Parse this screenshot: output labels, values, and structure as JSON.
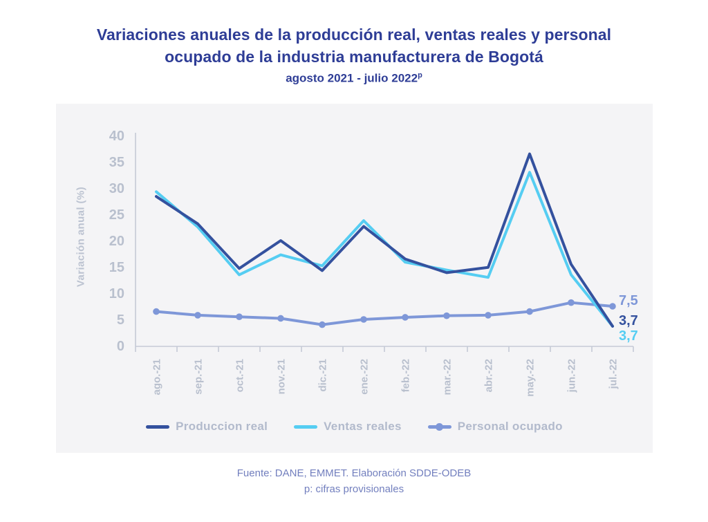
{
  "title": {
    "line1": "Variaciones anuales de la producción real, ventas reales y personal",
    "line2": "ocupado de la industria manufacturera de Bogotá",
    "subtitle": "agosto 2021 - julio 2022",
    "subtitle_superscript": "p"
  },
  "chart_data": {
    "type": "line",
    "title": "Variaciones anuales de la producción real, ventas reales y personal ocupado de la industria manufacturera de Bogotá",
    "subtitle": "agosto 2021 - julio 2022 (p)",
    "xlabel": "",
    "ylabel": "Variación anual (%)",
    "ylim": [
      0,
      40
    ],
    "yticks": [
      0,
      5,
      10,
      15,
      20,
      25,
      30,
      35,
      40
    ],
    "grid": false,
    "legend_position": "bottom",
    "categories": [
      "ago.-21",
      "sep.-21",
      "oct.-21",
      "nov.-21",
      "dic.-21",
      "ene.-22",
      "feb.-22",
      "mar.-22",
      "abr.-22",
      "may.-22",
      "jun.-22",
      "jul.-22"
    ],
    "series": [
      {
        "name": "Produccion real",
        "color": "#34519e",
        "marker": "none",
        "values": [
          28.4,
          23.2,
          14.7,
          20.0,
          14.3,
          22.7,
          16.5,
          13.9,
          14.9,
          36.5,
          15.5,
          3.7
        ]
      },
      {
        "name": "Ventas reales",
        "color": "#55cdf2",
        "marker": "none",
        "values": [
          29.3,
          22.6,
          13.5,
          17.3,
          15.2,
          23.8,
          15.9,
          14.4,
          13.0,
          33.0,
          13.5,
          3.7
        ]
      },
      {
        "name": "Personal ocupado",
        "color": "#7e97d8",
        "marker": "circle",
        "values": [
          6.5,
          5.8,
          5.5,
          5.2,
          4.0,
          5.0,
          5.4,
          5.7,
          5.8,
          6.5,
          8.2,
          7.5
        ]
      }
    ],
    "end_labels": [
      {
        "text": "7,5",
        "series": "Personal ocupado",
        "color": "#7e97d8"
      },
      {
        "text": "3,7",
        "series": "Produccion real",
        "color": "#34519e"
      },
      {
        "text": "3,7",
        "series": "Ventas reales",
        "color": "#55cdf2"
      }
    ],
    "axis_text_color": "#b9c0ce",
    "axis_line_color": "#c5cad5"
  },
  "footer": {
    "line1": "Fuente: DANE, EMMET. Elaboración SDDE-ODEB",
    "line2": "p: cifras provisionales"
  }
}
